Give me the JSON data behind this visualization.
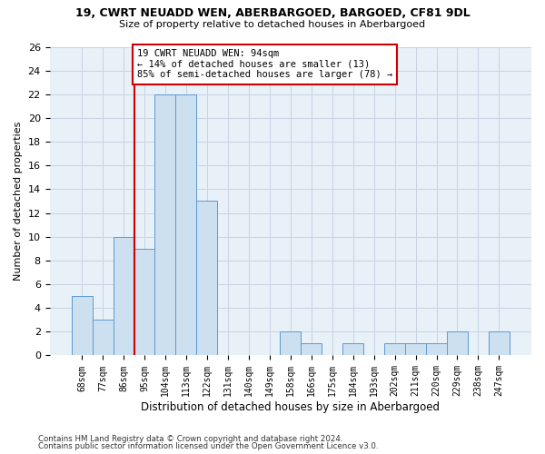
{
  "title_line1": "19, CWRT NEUADD WEN, ABERBARGOED, BARGOED, CF81 9DL",
  "title_line2": "Size of property relative to detached houses in Aberbargoed",
  "xlabel": "Distribution of detached houses by size in Aberbargoed",
  "ylabel": "Number of detached properties",
  "categories": [
    "68sqm",
    "77sqm",
    "86sqm",
    "95sqm",
    "104sqm",
    "113sqm",
    "122sqm",
    "131sqm",
    "140sqm",
    "149sqm",
    "158sqm",
    "166sqm",
    "175sqm",
    "184sqm",
    "193sqm",
    "202sqm",
    "211sqm",
    "220sqm",
    "229sqm",
    "238sqm",
    "247sqm"
  ],
  "values": [
    5,
    3,
    10,
    9,
    22,
    22,
    13,
    0,
    0,
    0,
    2,
    1,
    0,
    1,
    0,
    1,
    1,
    1,
    2,
    0,
    2
  ],
  "bar_color": "#cce0f0",
  "bar_edge_color": "#5b9bd5",
  "vline_x_idx": 3,
  "vline_color": "#cc0000",
  "annotation_text": "19 CWRT NEUADD WEN: 94sqm\n← 14% of detached houses are smaller (13)\n85% of semi-detached houses are larger (78) →",
  "annotation_box_color": "#cc0000",
  "ylim": [
    0,
    26
  ],
  "yticks": [
    0,
    2,
    4,
    6,
    8,
    10,
    12,
    14,
    16,
    18,
    20,
    22,
    24,
    26
  ],
  "grid_color": "#c8d4e4",
  "bg_color": "#e8f0f8",
  "footer_line1": "Contains HM Land Registry data © Crown copyright and database right 2024.",
  "footer_line2": "Contains public sector information licensed under the Open Government Licence v3.0."
}
